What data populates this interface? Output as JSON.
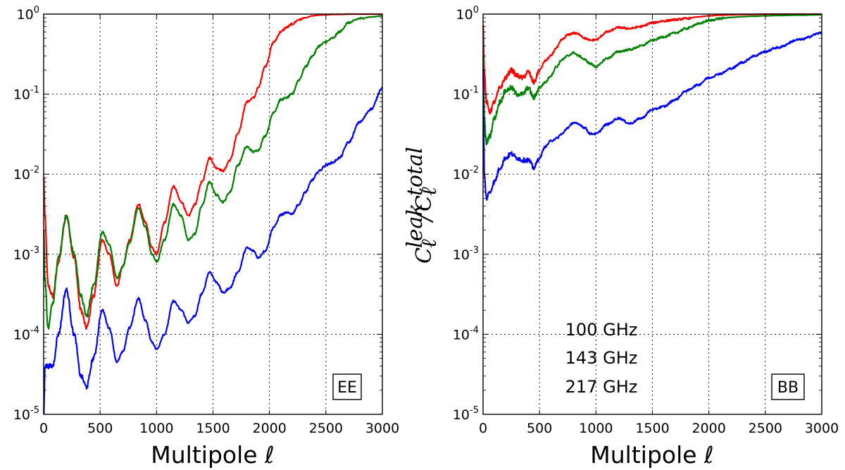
{
  "chart_data": [
    {
      "type": "line",
      "panel_label": "EE",
      "xlabel": "Multipole ℓ",
      "ylabel": "",
      "xlim": [
        0,
        3000
      ],
      "ylim": [
        1e-05,
        1
      ],
      "yscale": "log",
      "grid": true,
      "xticks": [
        "0",
        "500",
        "1000",
        "1500",
        "2000",
        "2500",
        "3000"
      ],
      "yticks": [
        {
          "base": "10",
          "exp": "0"
        },
        {
          "base": "10",
          "exp": "-1"
        },
        {
          "base": "10",
          "exp": "-2"
        },
        {
          "base": "10",
          "exp": "-3"
        },
        {
          "base": "10",
          "exp": "-4"
        },
        {
          "base": "10",
          "exp": "-5"
        }
      ],
      "series": [
        {
          "name": "100 GHz",
          "color": "#ff0000",
          "x": [
            2,
            10,
            40,
            80,
            130,
            200,
            270,
            330,
            380,
            440,
            520,
            580,
            650,
            700,
            760,
            840,
            900,
            960,
            1000,
            1070,
            1150,
            1220,
            1280,
            1340,
            1400,
            1470,
            1530,
            1590,
            1650,
            1720,
            1800,
            1860,
            1900,
            1960,
            2040,
            2100,
            2150,
            2200,
            2260,
            2320,
            2380,
            2440,
            2500,
            2560,
            2620,
            2700,
            2800,
            2900,
            3000
          ],
          "y": [
            0.009,
            0.003,
            0.0004,
            0.0003,
            0.0008,
            0.003,
            0.0009,
            0.0002,
            0.00012,
            0.0003,
            0.0015,
            0.001,
            0.0004,
            0.0007,
            0.0015,
            0.0042,
            0.0025,
            0.0012,
            0.001,
            0.0025,
            0.007,
            0.0045,
            0.003,
            0.0042,
            0.008,
            0.016,
            0.012,
            0.011,
            0.015,
            0.032,
            0.08,
            0.09,
            0.12,
            0.22,
            0.45,
            0.6,
            0.68,
            0.75,
            0.85,
            0.9,
            0.95,
            0.97,
            0.98,
            0.99,
            0.99,
            1.0,
            1.0,
            1.0,
            1.0
          ]
        },
        {
          "name": "143 GHz",
          "color": "#008000",
          "x": [
            2,
            10,
            40,
            80,
            130,
            200,
            270,
            330,
            380,
            440,
            520,
            580,
            650,
            700,
            760,
            840,
            900,
            960,
            1000,
            1070,
            1150,
            1220,
            1280,
            1340,
            1400,
            1470,
            1530,
            1590,
            1650,
            1720,
            1800,
            1860,
            1900,
            1960,
            2040,
            2100,
            2150,
            2200,
            2260,
            2320,
            2380,
            2440,
            2500,
            2560,
            2620,
            2700,
            2800,
            2900,
            3000
          ],
          "y": [
            0.002,
            0.0005,
            0.00012,
            0.00025,
            0.0009,
            0.003,
            0.001,
            0.0003,
            0.00017,
            0.0004,
            0.0019,
            0.0013,
            0.0005,
            0.0007,
            0.0014,
            0.0038,
            0.0022,
            0.001,
            0.0008,
            0.0015,
            0.0042,
            0.003,
            0.0015,
            0.0018,
            0.004,
            0.008,
            0.0055,
            0.0045,
            0.006,
            0.013,
            0.022,
            0.019,
            0.02,
            0.03,
            0.06,
            0.085,
            0.09,
            0.1,
            0.15,
            0.22,
            0.3,
            0.4,
            0.45,
            0.5,
            0.6,
            0.78,
            0.88,
            0.92,
            0.95
          ]
        },
        {
          "name": "217 GHz",
          "color": "#0000ff",
          "x": [
            2,
            10,
            40,
            80,
            130,
            200,
            270,
            330,
            380,
            440,
            520,
            580,
            650,
            700,
            760,
            840,
            900,
            960,
            1000,
            1070,
            1150,
            1220,
            1280,
            1340,
            1400,
            1470,
            1530,
            1590,
            1650,
            1720,
            1800,
            1860,
            1900,
            1960,
            2040,
            2100,
            2150,
            2200,
            2260,
            2320,
            2380,
            2440,
            2500,
            2560,
            2620,
            2700,
            2800,
            2900,
            3000
          ],
          "y": [
            1e-05,
            4e-05,
            4e-05,
            4e-05,
            0.0001,
            0.00036,
            0.0001,
            3e-05,
            2.2e-05,
            5e-05,
            0.0002,
            0.00012,
            4.5e-05,
            6e-05,
            0.00012,
            0.00028,
            0.00015,
            8e-05,
            6.5e-05,
            0.0001,
            0.00026,
            0.0002,
            0.00014,
            0.00017,
            0.00032,
            0.0006,
            0.00045,
            0.00033,
            0.00038,
            0.0006,
            0.0012,
            0.0011,
            0.0009,
            0.0011,
            0.0022,
            0.0031,
            0.0033,
            0.0032,
            0.0042,
            0.006,
            0.0085,
            0.011,
            0.013,
            0.014,
            0.016,
            0.025,
            0.045,
            0.065,
            0.12
          ]
        }
      ]
    },
    {
      "type": "line",
      "panel_label": "BB",
      "xlabel": "Multipole ℓ",
      "ylabel": "C_ℓ^leak / C_ℓ^total",
      "ylabel_parts": {
        "c": "C",
        "ell": "ℓ",
        "leak": "leak",
        "slash": "/",
        "total": "total"
      },
      "xlim": [
        0,
        3000
      ],
      "ylim": [
        1e-05,
        1
      ],
      "yscale": "log",
      "grid": true,
      "xticks": [
        "0",
        "500",
        "1000",
        "1500",
        "2000",
        "2500",
        "3000"
      ],
      "yticks": [
        {
          "base": "10",
          "exp": "0"
        },
        {
          "base": "10",
          "exp": "-1"
        },
        {
          "base": "10",
          "exp": "-2"
        },
        {
          "base": "10",
          "exp": "-3"
        },
        {
          "base": "10",
          "exp": "-4"
        },
        {
          "base": "10",
          "exp": "-5"
        }
      ],
      "legend": [
        "100 GHz",
        "143 GHz",
        "217 GHz"
      ],
      "series": [
        {
          "name": "100 GHz",
          "color": "#ff0000",
          "x": [
            2,
            10,
            30,
            60,
            100,
            150,
            200,
            250,
            300,
            350,
            400,
            450,
            500,
            550,
            600,
            650,
            700,
            750,
            800,
            850,
            900,
            950,
            1000,
            1100,
            1200,
            1300,
            1400,
            1500,
            1600,
            1700,
            1800,
            1900,
            2000,
            2100,
            2200,
            2300,
            2400,
            2500,
            2600,
            2800,
            3000
          ],
          "y": [
            0.7,
            0.2,
            0.08,
            0.06,
            0.08,
            0.12,
            0.16,
            0.2,
            0.17,
            0.16,
            0.19,
            0.14,
            0.2,
            0.26,
            0.3,
            0.38,
            0.48,
            0.55,
            0.58,
            0.56,
            0.5,
            0.47,
            0.48,
            0.6,
            0.68,
            0.66,
            0.7,
            0.78,
            0.82,
            0.85,
            0.88,
            0.92,
            0.95,
            0.97,
            0.98,
            0.99,
            0.99,
            1.0,
            1.0,
            1.0,
            1.0
          ]
        },
        {
          "name": "143 GHz",
          "color": "#008000",
          "x": [
            2,
            10,
            30,
            60,
            100,
            150,
            200,
            250,
            300,
            350,
            400,
            450,
            500,
            550,
            600,
            650,
            700,
            750,
            800,
            850,
            900,
            950,
            1000,
            1100,
            1200,
            1300,
            1400,
            1500,
            1600,
            1700,
            1800,
            1900,
            2000,
            2100,
            2200,
            2300,
            2400,
            2500,
            2600,
            2800,
            3000
          ],
          "y": [
            0.3,
            0.05,
            0.025,
            0.03,
            0.05,
            0.08,
            0.11,
            0.12,
            0.1,
            0.1,
            0.12,
            0.09,
            0.12,
            0.14,
            0.17,
            0.22,
            0.27,
            0.3,
            0.33,
            0.3,
            0.27,
            0.24,
            0.22,
            0.28,
            0.34,
            0.36,
            0.4,
            0.47,
            0.52,
            0.58,
            0.66,
            0.75,
            0.83,
            0.88,
            0.91,
            0.93,
            0.94,
            0.95,
            0.96,
            0.97,
            0.98
          ]
        },
        {
          "name": "217 GHz",
          "color": "#0000ff",
          "x": [
            2,
            10,
            30,
            60,
            100,
            150,
            200,
            250,
            300,
            350,
            400,
            450,
            500,
            550,
            600,
            650,
            700,
            750,
            800,
            850,
            900,
            950,
            1000,
            1100,
            1200,
            1300,
            1400,
            1500,
            1600,
            1700,
            1800,
            1900,
            2000,
            2100,
            2200,
            2300,
            2400,
            2500,
            2600,
            2800,
            3000
          ],
          "y": [
            0.2,
            0.01,
            0.005,
            0.006,
            0.008,
            0.012,
            0.016,
            0.018,
            0.016,
            0.015,
            0.015,
            0.012,
            0.016,
            0.022,
            0.026,
            0.028,
            0.032,
            0.038,
            0.044,
            0.042,
            0.038,
            0.032,
            0.032,
            0.042,
            0.05,
            0.043,
            0.05,
            0.064,
            0.07,
            0.085,
            0.11,
            0.13,
            0.16,
            0.18,
            0.21,
            0.25,
            0.3,
            0.34,
            0.38,
            0.48,
            0.58
          ]
        }
      ]
    }
  ]
}
